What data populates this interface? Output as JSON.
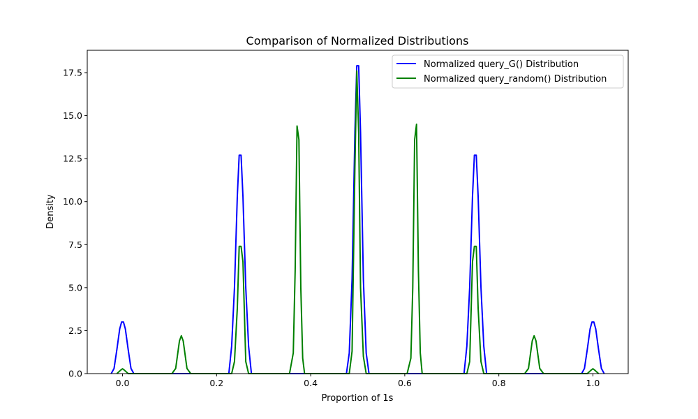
{
  "chart_data": {
    "type": "line",
    "title": "Comparison of Normalized Distributions",
    "xlabel": "Proportion of 1s",
    "ylabel": "Density",
    "xlim": [
      -0.075,
      1.075
    ],
    "ylim": [
      0,
      18.8
    ],
    "xticks": [
      0.0,
      0.2,
      0.4,
      0.6,
      0.8,
      1.0
    ],
    "xtick_labels": [
      "0.0",
      "0.2",
      "0.4",
      "0.6",
      "0.8",
      "1.0"
    ],
    "yticks": [
      0.0,
      2.5,
      5.0,
      7.5,
      10.0,
      12.5,
      15.0,
      17.5
    ],
    "ytick_labels": [
      "0.0",
      "2.5",
      "5.0",
      "7.5",
      "10.0",
      "12.5",
      "15.0",
      "17.5"
    ],
    "grid": false,
    "legend_position": "top-right",
    "series": [
      {
        "name": "Normalized query_G() Distribution",
        "color": "#0000ff",
        "x": [
          -0.024,
          -0.018,
          -0.012,
          -0.006,
          -0.002,
          0.002,
          0.006,
          0.012,
          0.018,
          0.024,
          0.226,
          0.232,
          0.238,
          0.244,
          0.248,
          0.252,
          0.256,
          0.262,
          0.268,
          0.274,
          0.476,
          0.482,
          0.488,
          0.494,
          0.498,
          0.502,
          0.506,
          0.512,
          0.518,
          0.524,
          0.726,
          0.732,
          0.738,
          0.744,
          0.748,
          0.752,
          0.756,
          0.762,
          0.768,
          0.774,
          0.976,
          0.982,
          0.988,
          0.994,
          0.998,
          1.002,
          1.006,
          1.012,
          1.018,
          1.024
        ],
        "y": [
          0.0,
          0.3,
          1.4,
          2.6,
          3.0,
          3.0,
          2.6,
          1.4,
          0.3,
          0.0,
          0.0,
          1.6,
          5.0,
          10.3,
          12.7,
          12.7,
          10.3,
          5.0,
          1.6,
          0.0,
          0.0,
          1.2,
          5.5,
          14.0,
          17.9,
          17.9,
          14.0,
          5.5,
          1.2,
          0.0,
          0.0,
          1.6,
          5.0,
          10.3,
          12.7,
          12.7,
          10.3,
          5.0,
          1.6,
          0.0,
          0.0,
          0.3,
          1.4,
          2.6,
          3.0,
          3.0,
          2.6,
          1.4,
          0.3,
          0.0
        ]
      },
      {
        "name": "Normalized query_random() Distribution",
        "color": "#008000",
        "x": [
          -0.012,
          -0.004,
          0.0,
          0.004,
          0.012,
          0.105,
          0.113,
          0.121,
          0.125,
          0.129,
          0.137,
          0.145,
          0.232,
          0.238,
          0.244,
          0.248,
          0.252,
          0.256,
          0.262,
          0.268,
          0.355,
          0.363,
          0.367,
          0.371,
          0.375,
          0.379,
          0.383,
          0.387,
          0.395,
          0.482,
          0.488,
          0.494,
          0.498,
          0.502,
          0.506,
          0.512,
          0.518,
          0.605,
          0.613,
          0.617,
          0.621,
          0.625,
          0.629,
          0.633,
          0.637,
          0.645,
          0.732,
          0.738,
          0.744,
          0.748,
          0.752,
          0.756,
          0.762,
          0.768,
          0.855,
          0.863,
          0.871,
          0.875,
          0.879,
          0.887,
          0.895,
          0.988,
          0.996,
          1.0,
          1.004,
          1.012
        ],
        "y": [
          0.0,
          0.2,
          0.28,
          0.2,
          0.0,
          0.0,
          0.3,
          1.9,
          2.2,
          1.9,
          0.3,
          0.0,
          0.0,
          0.7,
          3.8,
          7.4,
          7.4,
          6.5,
          0.7,
          0.0,
          0.0,
          1.2,
          6.0,
          14.4,
          13.6,
          5.0,
          0.9,
          0.0,
          0.0,
          0.0,
          1.3,
          12.0,
          17.6,
          14.0,
          5.0,
          1.0,
          0.0,
          0.0,
          0.9,
          5.0,
          13.6,
          14.5,
          6.0,
          1.2,
          0.0,
          0.0,
          0.0,
          0.7,
          6.5,
          7.4,
          7.4,
          3.8,
          0.7,
          0.0,
          0.0,
          0.3,
          1.9,
          2.2,
          1.9,
          0.3,
          0.0,
          0.0,
          0.2,
          0.28,
          0.2,
          0.0
        ]
      }
    ]
  }
}
